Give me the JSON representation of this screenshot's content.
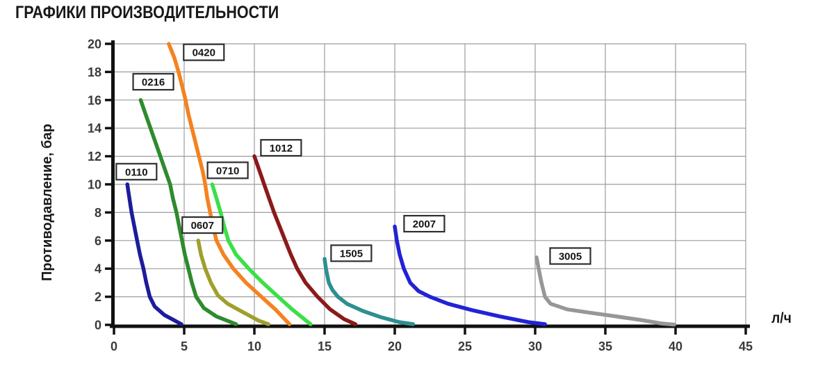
{
  "title": "ГРАФИКИ ПРОИЗВОДИТЕЛЬНОСТИ",
  "chart_data": {
    "type": "line",
    "title": "ГРАФИКИ ПРОИЗВОДИТЕЛЬНОСТИ",
    "xlabel": "л/ч",
    "ylabel": "Противодавление, бар",
    "xlim": [
      0,
      45
    ],
    "ylim": [
      0,
      20
    ],
    "x_ticks": [
      0,
      5,
      10,
      15,
      20,
      25,
      30,
      35,
      40,
      45
    ],
    "y_ticks": [
      0,
      2,
      4,
      6,
      8,
      10,
      12,
      14,
      16,
      18,
      20
    ],
    "grid": true,
    "legend_position": "inline-boxed-labels",
    "colors": {
      "grid": "#9c9c9c",
      "axis": "#111111",
      "tick_text": "#3a3a3a",
      "label_box_border": "#2e2e2e",
      "label_box_fill": "#ffffff"
    },
    "series": [
      {
        "name": "0110",
        "color": "#1c1c9c",
        "label_at": [
          1.6,
          10.9
        ],
        "points": [
          [
            0.95,
            10
          ],
          [
            1.1,
            9
          ],
          [
            1.25,
            8
          ],
          [
            1.45,
            7
          ],
          [
            1.65,
            6
          ],
          [
            1.85,
            5
          ],
          [
            2.1,
            4
          ],
          [
            2.3,
            3
          ],
          [
            2.55,
            2
          ],
          [
            2.9,
            1.3
          ],
          [
            3.6,
            0.7
          ],
          [
            4.8,
            0.05
          ]
        ]
      },
      {
        "name": "0216",
        "color": "#2e8b2e",
        "label_at": [
          2.8,
          17.3
        ],
        "points": [
          [
            1.9,
            16
          ],
          [
            2.25,
            15
          ],
          [
            2.6,
            14
          ],
          [
            2.95,
            13
          ],
          [
            3.3,
            12
          ],
          [
            3.65,
            11
          ],
          [
            4.0,
            10
          ],
          [
            4.2,
            9
          ],
          [
            4.45,
            8
          ],
          [
            4.65,
            7
          ],
          [
            4.85,
            6
          ],
          [
            5.05,
            5
          ],
          [
            5.3,
            4
          ],
          [
            5.55,
            3
          ],
          [
            5.85,
            2
          ],
          [
            6.4,
            1.2
          ],
          [
            7.3,
            0.6
          ],
          [
            8.7,
            0.05
          ]
        ]
      },
      {
        "name": "0420",
        "color": "#f58220",
        "label_at": [
          6.4,
          19.4
        ],
        "points": [
          [
            3.9,
            20
          ],
          [
            4.3,
            19
          ],
          [
            4.6,
            18
          ],
          [
            4.85,
            17
          ],
          [
            5.1,
            16
          ],
          [
            5.3,
            15
          ],
          [
            5.55,
            14
          ],
          [
            5.8,
            13
          ],
          [
            6.05,
            12
          ],
          [
            6.3,
            11
          ],
          [
            6.5,
            10
          ],
          [
            6.65,
            9
          ],
          [
            6.85,
            8
          ],
          [
            7.05,
            7
          ],
          [
            7.3,
            6
          ],
          [
            7.8,
            5
          ],
          [
            8.5,
            4
          ],
          [
            9.4,
            3
          ],
          [
            10.5,
            2
          ],
          [
            11.5,
            1.1
          ],
          [
            12.5,
            0.05
          ]
        ]
      },
      {
        "name": "0607",
        "color": "#9f9f2d",
        "label_at": [
          6.3,
          7.1
        ],
        "points": [
          [
            6.0,
            6
          ],
          [
            6.2,
            5
          ],
          [
            6.5,
            4
          ],
          [
            6.9,
            3
          ],
          [
            7.4,
            2.1
          ],
          [
            8.1,
            1.5
          ],
          [
            9.2,
            0.9
          ],
          [
            10.3,
            0.3
          ],
          [
            11.0,
            0.05
          ]
        ]
      },
      {
        "name": "0710",
        "color": "#3cdf46",
        "label_at": [
          8.1,
          11.0
        ],
        "points": [
          [
            7.0,
            10
          ],
          [
            7.3,
            9
          ],
          [
            7.6,
            8
          ],
          [
            7.85,
            7
          ],
          [
            8.15,
            6
          ],
          [
            8.7,
            5
          ],
          [
            9.6,
            4
          ],
          [
            10.6,
            3
          ],
          [
            11.7,
            2
          ],
          [
            12.7,
            1.1
          ],
          [
            14.0,
            0.05
          ]
        ]
      },
      {
        "name": "1012",
        "color": "#8b1a1a",
        "label_at": [
          11.9,
          12.6
        ],
        "points": [
          [
            10.0,
            12
          ],
          [
            10.35,
            11
          ],
          [
            10.7,
            10
          ],
          [
            11.05,
            9
          ],
          [
            11.4,
            8
          ],
          [
            11.8,
            7
          ],
          [
            12.2,
            6
          ],
          [
            12.6,
            5
          ],
          [
            13.05,
            4
          ],
          [
            13.65,
            3
          ],
          [
            14.5,
            2
          ],
          [
            15.4,
            1.1
          ],
          [
            16.4,
            0.4
          ],
          [
            17.2,
            0.05
          ]
        ]
      },
      {
        "name": "1505",
        "color": "#2e8f8f",
        "label_at": [
          16.9,
          5.1
        ],
        "points": [
          [
            15.0,
            4.7
          ],
          [
            15.1,
            4
          ],
          [
            15.3,
            3
          ],
          [
            15.55,
            2.5
          ],
          [
            15.95,
            2
          ],
          [
            16.6,
            1.5
          ],
          [
            17.7,
            1.0
          ],
          [
            19.0,
            0.55
          ],
          [
            20.3,
            0.2
          ],
          [
            21.3,
            0.05
          ]
        ]
      },
      {
        "name": "2007",
        "color": "#2222d6",
        "label_at": [
          22.1,
          7.2
        ],
        "points": [
          [
            20.0,
            7
          ],
          [
            20.15,
            6
          ],
          [
            20.35,
            5
          ],
          [
            20.65,
            4
          ],
          [
            21.1,
            3
          ],
          [
            21.7,
            2.4
          ],
          [
            22.5,
            2.0
          ],
          [
            23.8,
            1.5
          ],
          [
            25.5,
            1.05
          ],
          [
            27.5,
            0.6
          ],
          [
            29.5,
            0.2
          ],
          [
            30.7,
            0.05
          ]
        ]
      },
      {
        "name": "3005",
        "color": "#979797",
        "label_at": [
          32.5,
          4.9
        ],
        "points": [
          [
            30.1,
            4.8
          ],
          [
            30.25,
            4
          ],
          [
            30.45,
            3
          ],
          [
            30.7,
            2
          ],
          [
            31.1,
            1.5
          ],
          [
            32.3,
            1.1
          ],
          [
            34.0,
            0.85
          ],
          [
            35.8,
            0.6
          ],
          [
            37.5,
            0.35
          ],
          [
            39.0,
            0.1
          ],
          [
            39.9,
            0.02
          ]
        ]
      }
    ]
  }
}
